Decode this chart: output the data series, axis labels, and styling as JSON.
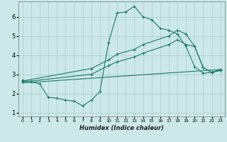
{
  "xlabel": "Humidex (Indice chaleur)",
  "background_color": "#cce8e8",
  "grid_color": "#aacccc",
  "line_color": "#1a7a6e",
  "xlim": [
    -0.5,
    23.5
  ],
  "ylim": [
    0.8,
    6.8
  ],
  "xticks": [
    0,
    1,
    2,
    3,
    4,
    5,
    6,
    7,
    8,
    9,
    10,
    11,
    12,
    13,
    14,
    15,
    16,
    17,
    18,
    19,
    20,
    21,
    22,
    23
  ],
  "yticks": [
    1,
    2,
    3,
    4,
    5,
    6
  ],
  "line1_x": [
    0,
    1,
    2,
    3,
    4,
    5,
    6,
    7,
    8,
    9,
    10,
    11,
    12,
    13,
    14,
    15,
    16,
    17,
    18,
    19,
    20,
    21,
    22,
    23
  ],
  "line1_y": [
    2.7,
    2.6,
    2.5,
    1.8,
    1.75,
    1.65,
    1.6,
    1.35,
    1.65,
    2.1,
    4.65,
    6.2,
    6.25,
    6.55,
    6.0,
    5.85,
    5.4,
    5.3,
    5.1,
    4.45,
    3.4,
    3.05,
    3.1,
    3.25
  ],
  "line2_x": [
    0,
    23
  ],
  "line2_y": [
    2.55,
    3.25
  ],
  "line3_x": [
    0,
    8,
    10,
    11,
    13,
    14,
    17,
    18,
    19,
    20,
    21,
    22,
    23
  ],
  "line3_y": [
    2.65,
    3.3,
    3.75,
    4.05,
    4.3,
    4.55,
    5.0,
    5.3,
    5.1,
    4.45,
    3.35,
    3.1,
    3.2
  ],
  "line4_x": [
    0,
    8,
    10,
    11,
    13,
    14,
    17,
    18,
    19,
    20,
    21,
    22,
    23
  ],
  "line4_y": [
    2.6,
    3.0,
    3.45,
    3.65,
    3.9,
    4.1,
    4.55,
    4.8,
    4.55,
    4.45,
    3.35,
    3.1,
    3.2
  ]
}
